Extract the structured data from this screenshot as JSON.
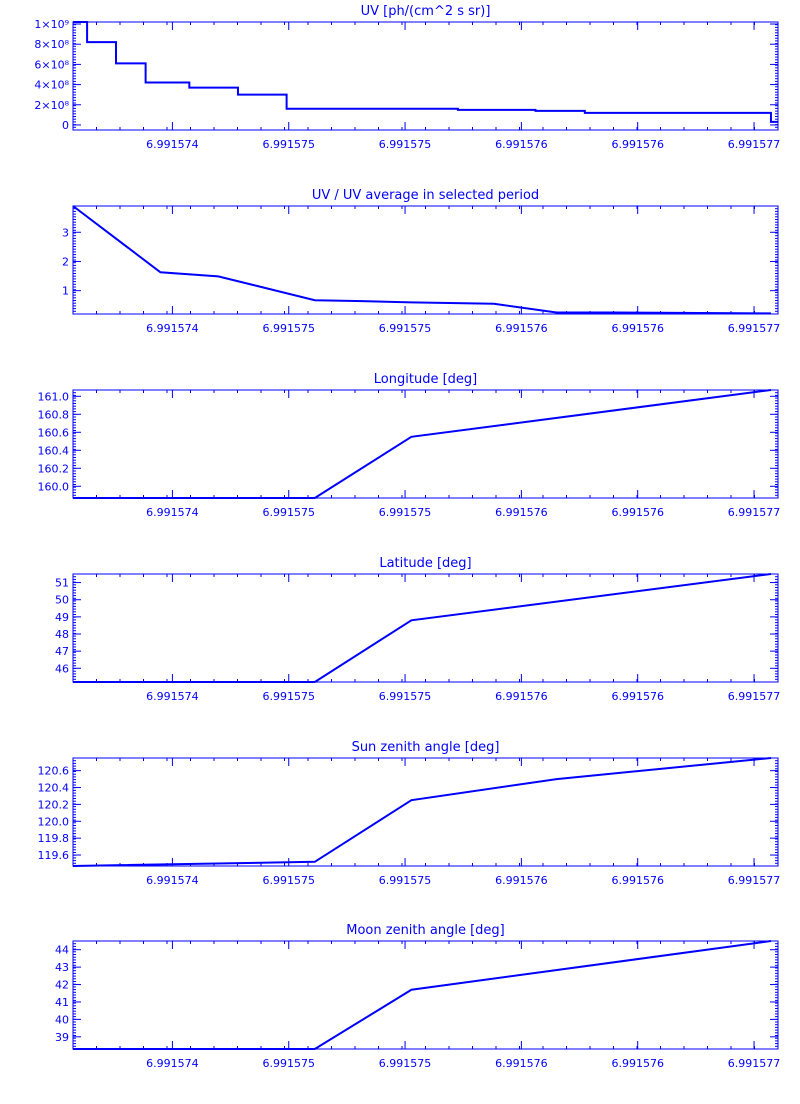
{
  "style": {
    "color": "#0000ff",
    "background": "#ffffff"
  },
  "x_tick_labels": [
    "6.991574",
    "6.991575",
    "6.991575",
    "6.991576",
    "6.991576",
    "6.991577"
  ],
  "chart_data": [
    {
      "type": "line",
      "title": "UV [ph/(cm^2 s sr)]",
      "xlabel": "",
      "ylabel": "",
      "step": true,
      "y_tick_labels": [
        "0",
        "2×10⁸",
        "4×10⁸",
        "6×10⁸",
        "8×10⁸",
        "1×10⁹"
      ],
      "y_tick_values": [
        0,
        200000000,
        400000000,
        600000000,
        800000000,
        1000000000
      ],
      "ylim": [
        -50000000,
        1020000000
      ],
      "x": [
        0.0,
        0.02,
        0.061,
        0.103,
        0.165,
        0.234,
        0.303,
        0.546,
        0.656,
        0.726,
        0.99,
        1.0
      ],
      "values": [
        1020000000,
        820000000,
        610000000,
        420000000,
        370000000,
        300000000,
        160000000,
        150000000,
        140000000,
        120000000,
        30000000,
        30000000
      ]
    },
    {
      "type": "line",
      "title": "UV / UV average in selected period",
      "xlabel": "",
      "ylabel": "",
      "y_tick_labels": [
        "1",
        "2",
        "3"
      ],
      "y_tick_values": [
        1,
        2,
        3
      ],
      "ylim": [
        0.2,
        3.9
      ],
      "x": [
        0.0,
        0.124,
        0.206,
        0.343,
        0.411,
        0.48,
        0.597,
        0.686,
        0.768,
        0.99
      ],
      "values": [
        3.9,
        1.63,
        1.49,
        0.67,
        0.64,
        0.6,
        0.55,
        0.25,
        0.25,
        0.22
      ]
    },
    {
      "type": "line",
      "title": "Longitude [deg]",
      "xlabel": "",
      "ylabel": "",
      "y_tick_labels": [
        "160.0",
        "160.2",
        "160.4",
        "160.6",
        "160.8",
        "161.0"
      ],
      "y_tick_values": [
        160.0,
        160.2,
        160.4,
        160.6,
        160.8,
        161.0
      ],
      "ylim": [
        159.87,
        161.07
      ],
      "x": [
        0.0,
        0.343,
        0.48,
        0.99
      ],
      "values": [
        159.87,
        159.87,
        160.55,
        161.07
      ]
    },
    {
      "type": "line",
      "title": "Latitude [deg]",
      "xlabel": "",
      "ylabel": "",
      "y_tick_labels": [
        "46",
        "47",
        "48",
        "49",
        "50",
        "51"
      ],
      "y_tick_values": [
        46,
        47,
        48,
        49,
        50,
        51
      ],
      "ylim": [
        45.2,
        51.5
      ],
      "x": [
        0.0,
        0.343,
        0.48,
        0.99
      ],
      "values": [
        45.2,
        45.2,
        48.8,
        51.5
      ]
    },
    {
      "type": "line",
      "title": "Sun zenith angle [deg]",
      "xlabel": "",
      "ylabel": "",
      "y_tick_labels": [
        "119.6",
        "119.8",
        "120.0",
        "120.2",
        "120.4",
        "120.6"
      ],
      "y_tick_values": [
        119.6,
        119.8,
        120.0,
        120.2,
        120.4,
        120.6
      ],
      "ylim": [
        119.47,
        120.75
      ],
      "x": [
        0.0,
        0.343,
        0.48,
        0.686,
        0.99
      ],
      "values": [
        119.47,
        119.52,
        120.25,
        120.5,
        120.75
      ]
    },
    {
      "type": "line",
      "title": "Moon zenith angle [deg]",
      "xlabel": "",
      "ylabel": "",
      "y_tick_labels": [
        "39",
        "40",
        "41",
        "42",
        "43",
        "44"
      ],
      "y_tick_values": [
        39,
        40,
        41,
        42,
        43,
        44
      ],
      "ylim": [
        38.3,
        44.5
      ],
      "x": [
        0.0,
        0.343,
        0.48,
        0.99
      ],
      "values": [
        38.3,
        38.3,
        41.7,
        44.5
      ]
    }
  ]
}
